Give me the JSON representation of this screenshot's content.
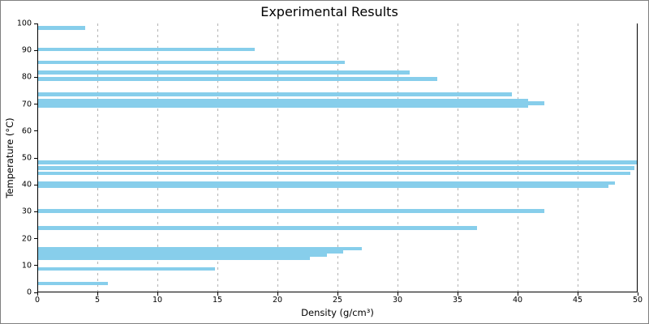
{
  "chart_data": {
    "type": "bar",
    "orientation": "horizontal",
    "title": "Experimental Results",
    "xlabel": "Density (g/cm³)",
    "ylabel": "Temperature (°C)",
    "xlim": [
      0,
      50
    ],
    "ylim": [
      0,
      100
    ],
    "xticks": [
      0,
      5,
      10,
      15,
      20,
      25,
      30,
      35,
      40,
      45,
      50
    ],
    "yticks": [
      0,
      10,
      20,
      30,
      40,
      50,
      60,
      70,
      80,
      90,
      100
    ],
    "grid": {
      "axis": "x",
      "style": "dashed",
      "color": "#b3b3b3"
    },
    "bar_color": "#87CEEB",
    "bar_height_units": 1.35,
    "points": [
      {
        "temperature": 98.4,
        "density": 4.0
      },
      {
        "temperature": 90.4,
        "density": 18.1
      },
      {
        "temperature": 85.5,
        "density": 25.6
      },
      {
        "temperature": 81.8,
        "density": 31.0
      },
      {
        "temperature": 79.3,
        "density": 33.3
      },
      {
        "temperature": 73.7,
        "density": 39.5
      },
      {
        "temperature": 71.3,
        "density": 40.9
      },
      {
        "temperature": 70.3,
        "density": 42.2
      },
      {
        "temperature": 69.5,
        "density": 40.9
      },
      {
        "temperature": 48.4,
        "density": 49.9
      },
      {
        "temperature": 46.3,
        "density": 49.7
      },
      {
        "temperature": 44.3,
        "density": 49.4
      },
      {
        "temperature": 40.6,
        "density": 48.1
      },
      {
        "temperature": 39.4,
        "density": 47.6
      },
      {
        "temperature": 30.2,
        "density": 42.2
      },
      {
        "temperature": 24.0,
        "density": 36.6
      },
      {
        "temperature": 16.2,
        "density": 27.0
      },
      {
        "temperature": 15.0,
        "density": 25.5
      },
      {
        "temperature": 13.8,
        "density": 24.1
      },
      {
        "temperature": 12.6,
        "density": 22.7
      },
      {
        "temperature": 8.7,
        "density": 14.8
      },
      {
        "temperature": 3.3,
        "density": 5.9
      }
    ]
  }
}
